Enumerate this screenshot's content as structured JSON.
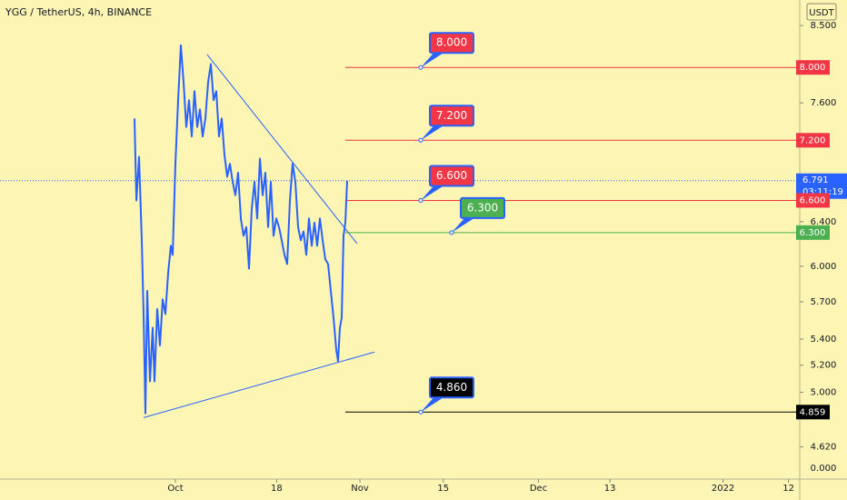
{
  "chart_data": {
    "type": "line",
    "title": "YGG / TetherUS, 4h, BINANCE",
    "currency": "USDT",
    "log_scale": true,
    "xlim": [
      -29.47,
      104.89
    ],
    "ylim": [
      4.41,
      8.82
    ],
    "xticks": [
      {
        "value": 0,
        "label": "Oct"
      },
      {
        "value": 17,
        "label": "18"
      },
      {
        "value": 31,
        "label": "Nov"
      },
      {
        "value": 45,
        "label": "15"
      },
      {
        "value": 61,
        "label": "Dec"
      },
      {
        "value": 73,
        "label": "13"
      },
      {
        "value": 92,
        "label": "2022"
      },
      {
        "value": 103,
        "label": "12"
      }
    ],
    "yticks": [
      {
        "value": 8.5,
        "label": "8.500"
      },
      {
        "value": 7.6,
        "label": "7.600"
      },
      {
        "value": 6.4,
        "label": "6.400"
      },
      {
        "value": 6,
        "label": "6.000"
      },
      {
        "value": 5.7,
        "label": "5.700"
      },
      {
        "value": 5.4,
        "label": "5.400"
      },
      {
        "value": 5.2,
        "label": "5.200"
      },
      {
        "value": 5,
        "label": "5.000"
      },
      {
        "value": 4.62,
        "label": "4.620"
      }
    ],
    "bottom_label": "0.000",
    "series": [
      {
        "color": "#2962ff",
        "x": [
          -6.87,
          -6.56,
          -6.11,
          -5.65,
          -5.35,
          -5.04,
          -4.73,
          -4.28,
          -3.82,
          -3.51,
          -3.05,
          -2.6,
          -2.14,
          -1.68,
          -1.22,
          -0.76,
          -0.46,
          0,
          0.46,
          0.92,
          1.37,
          1.83,
          2.29,
          2.75,
          3.21,
          3.66,
          4.12,
          4.58,
          5.04,
          5.5,
          5.95,
          6.41,
          6.87,
          7.33,
          7.79,
          8.24,
          8.7,
          9.16,
          9.62,
          10.08,
          10.53,
          10.99,
          11.45,
          11.91,
          12.37,
          12.82,
          13.28,
          13.74,
          14.2,
          14.66,
          15.11,
          15.57,
          16.03,
          16.49,
          16.95,
          17.4,
          17.86,
          18.32,
          18.78,
          19.24,
          19.69,
          20.15,
          20.61,
          21.07,
          21.53,
          21.98,
          22.44,
          22.9,
          23.36,
          23.82,
          24.27,
          24.73,
          25.19,
          25.65,
          26.11,
          26.56,
          27.02,
          27.33,
          27.63,
          27.94,
          28.24,
          28.55,
          28.85
        ],
        "values": [
          7.43,
          6.6,
          7.03,
          6.23,
          5.6,
          4.85,
          5.79,
          5.08,
          5.49,
          5.08,
          5.64,
          5.35,
          5.72,
          5.6,
          5.94,
          6.18,
          6.1,
          6.96,
          7.63,
          8.26,
          7.83,
          7.34,
          7.63,
          7.24,
          7.73,
          7.34,
          7.53,
          7.24,
          7.43,
          7.83,
          8.04,
          7.63,
          7.73,
          7.24,
          7.43,
          7.05,
          6.83,
          6.96,
          6.78,
          6.65,
          6.87,
          6.43,
          6.27,
          6.35,
          5.98,
          6.52,
          6.78,
          6.43,
          7.01,
          6.65,
          6.87,
          6.35,
          6.78,
          6.27,
          6.43,
          6.35,
          6.23,
          6.1,
          6.02,
          6.6,
          6.96,
          6.78,
          6.35,
          6.23,
          6.31,
          6.1,
          6.43,
          6.18,
          6.39,
          6.18,
          6.43,
          6.23,
          6.06,
          6.02,
          5.79,
          5.57,
          5.32,
          5.23,
          5.49,
          5.57,
          6.27,
          6.39,
          6.79
        ]
      }
    ],
    "last_price": 6.791,
    "countdown": "03:11:19",
    "trendlines": [
      {
        "color": "#2962ff",
        "x": [
          5.34,
          30.53
        ],
        "values": [
          8.15,
          6.2
        ]
      },
      {
        "color": "#2962ff",
        "x": [
          -5.34,
          33.44
        ],
        "values": [
          4.82,
          5.3
        ]
      }
    ],
    "levels": [
      {
        "value": 8,
        "label": "8.000",
        "callout": "8.000",
        "color": "#f23645"
      },
      {
        "value": 7.2,
        "label": "7.200",
        "callout": "7.200",
        "color": "#f23645"
      },
      {
        "value": 6.6,
        "label": "6.600",
        "callout": "6.600",
        "color": "#f23645"
      },
      {
        "value": 6.3,
        "label": "6.300",
        "callout": "6.300",
        "color": "#4caf50"
      },
      {
        "value": 4.859,
        "label": "4.859",
        "callout": "4.860",
        "color": "#000000"
      }
    ]
  }
}
